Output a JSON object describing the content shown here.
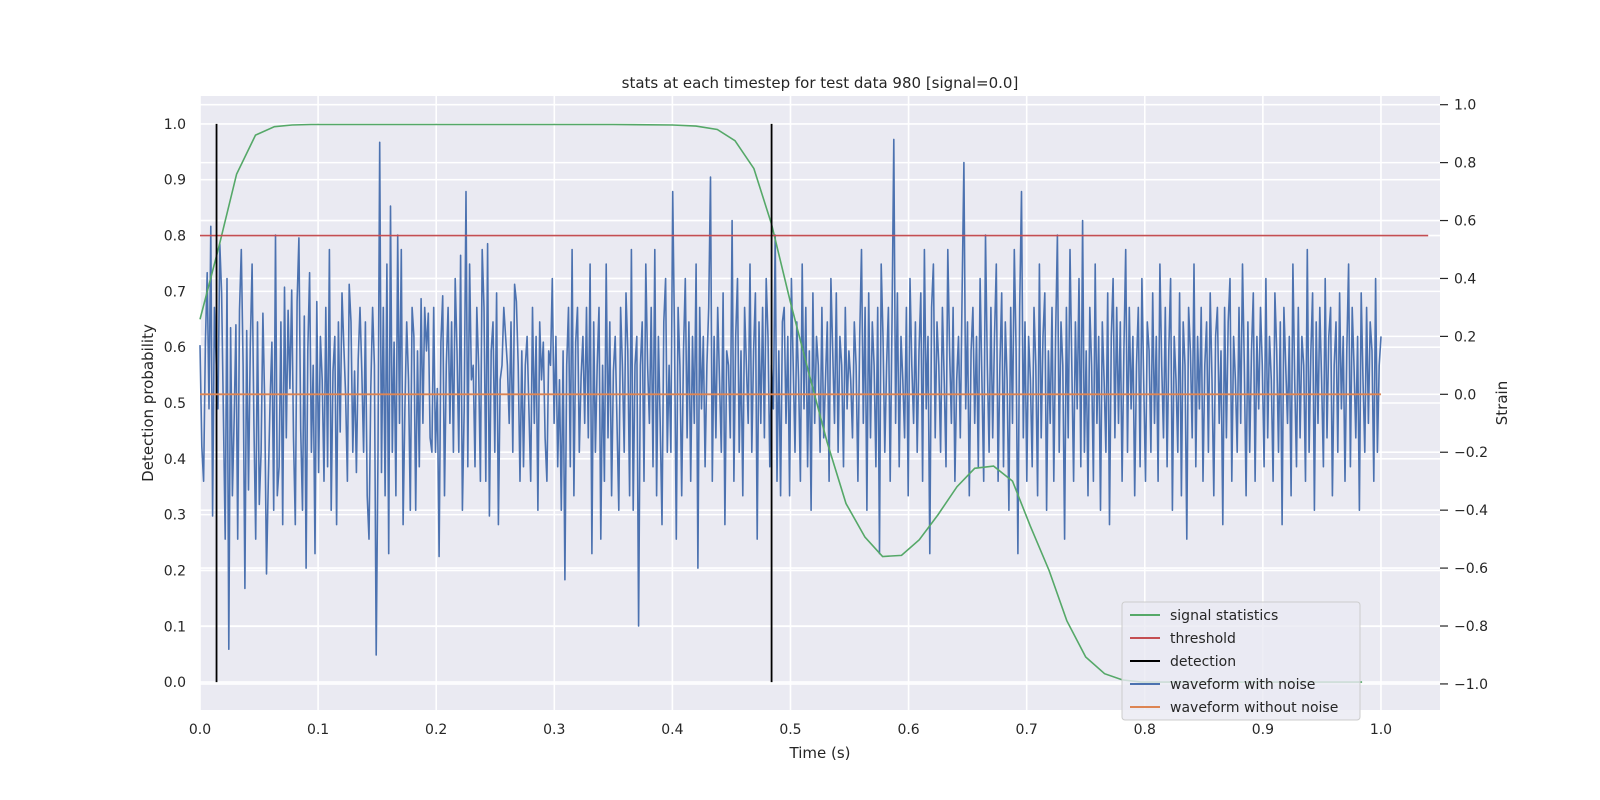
{
  "chart_data": {
    "type": "line",
    "title": "stats at each timestep for test data 980 [signal=0.0]",
    "xlabel": "Time (s)",
    "ylabel_left": "Detection probability",
    "ylabel_right": "Strain",
    "xlim": [
      0.0,
      1.05
    ],
    "ylim_left": [
      -0.05,
      1.05
    ],
    "ylim_right": [
      -1.09,
      1.03
    ],
    "x_ticks": [
      0.0,
      0.1,
      0.2,
      0.3,
      0.4,
      0.5,
      0.6,
      0.7,
      0.8,
      0.9,
      1.0
    ],
    "x_tick_labels": [
      "0.0",
      "0.1",
      "0.2",
      "0.3",
      "0.4",
      "0.5",
      "0.6",
      "0.7",
      "0.8",
      "0.9",
      "1.0"
    ],
    "y_left_ticks": [
      0.0,
      0.1,
      0.2,
      0.3,
      0.4,
      0.5,
      0.6,
      0.7,
      0.8,
      0.9,
      1.0
    ],
    "y_left_tick_labels": [
      "0.0",
      "0.1",
      "0.2",
      "0.3",
      "0.4",
      "0.5",
      "0.6",
      "0.7",
      "0.8",
      "0.9",
      "1.0"
    ],
    "y_right_ticks": [
      -1.0,
      -0.8,
      -0.6,
      -0.4,
      -0.2,
      0.0,
      0.2,
      0.4,
      0.6,
      0.8,
      1.0
    ],
    "y_right_tick_labels": [
      "−1.0",
      "−0.8",
      "−0.6",
      "−0.4",
      "−0.2",
      "0.0",
      "0.2",
      "0.4",
      "0.6",
      "0.8",
      "1.0"
    ],
    "grid": true,
    "legend_position": "lower-right",
    "legend": [
      {
        "name": "signal statistics",
        "color": "#55a868"
      },
      {
        "name": "threshold",
        "color": "#c44e52"
      },
      {
        "name": "detection",
        "color": "#000000"
      },
      {
        "name": "waveform with noise",
        "color": "#4c72b0"
      },
      {
        "name": "waveform without noise",
        "color": "#dd8452"
      }
    ],
    "signal_statistics": {
      "color": "#55a868",
      "x": [
        0.0,
        0.016,
        0.031,
        0.047,
        0.063,
        0.078,
        0.094,
        0.15,
        0.25,
        0.35,
        0.4,
        0.42,
        0.438,
        0.453,
        0.469,
        0.484,
        0.5,
        0.516,
        0.531,
        0.547,
        0.563,
        0.578,
        0.594,
        0.609,
        0.625,
        0.641,
        0.656,
        0.672,
        0.688,
        0.703,
        0.719,
        0.734,
        0.75,
        0.766,
        0.781,
        0.797,
        0.813,
        0.828,
        0.844,
        0.86,
        0.875,
        0.891,
        0.906,
        0.922,
        0.938,
        0.953,
        0.969,
        0.984
      ],
      "y": [
        0.65,
        0.78,
        0.91,
        0.98,
        0.995,
        0.998,
        0.999,
        0.999,
        0.999,
        0.999,
        0.998,
        0.996,
        0.99,
        0.97,
        0.92,
        0.82,
        0.68,
        0.55,
        0.43,
        0.32,
        0.26,
        0.225,
        0.227,
        0.255,
        0.3,
        0.35,
        0.383,
        0.387,
        0.36,
        0.28,
        0.2,
        0.11,
        0.045,
        0.015,
        0.004,
        0.0,
        0.0,
        0.0,
        0.0,
        0.0,
        0.0,
        0.0,
        0.0,
        0.0,
        0.0,
        0.0,
        0.0,
        0.0
      ]
    },
    "threshold": {
      "color": "#c44e52",
      "y": 0.8,
      "x_range": [
        0.0,
        1.04
      ]
    },
    "detections": {
      "color": "#000000",
      "x": [
        0.014,
        0.484
      ],
      "y_range": [
        0.0,
        1.0
      ]
    },
    "waveform_without_noise": {
      "color": "#dd8452",
      "x_range": [
        0.0,
        1.0
      ],
      "strain": 0.0
    },
    "waveform_with_noise": {
      "color": "#4c72b0",
      "x_start": 0.0,
      "x_end": 1.0,
      "strain": [
        0.17,
        -0.18,
        -0.3,
        0.18,
        0.42,
        -0.05,
        0.58,
        -0.42,
        0.3,
        0.11,
        -0.05,
        0.52,
        0.35,
        -0.07,
        -0.5,
        0.4,
        -0.88,
        0.23,
        -0.35,
        -0.08,
        0.24,
        -0.5,
        0.29,
        0.5,
        0.1,
        -0.67,
        0.22,
        -0.33,
        0.17,
        0.45,
        -0.1,
        -0.5,
        0.25,
        -0.38,
        -0.2,
        0.28,
        -0.03,
        -0.62,
        -0.3,
        -0.02,
        0.18,
        -0.4,
        0.55,
        -0.35,
        -0.25,
        0.25,
        -0.45,
        0.37,
        -0.15,
        0.29,
        0.02,
        0.36,
        -0.15,
        -0.45,
        0.32,
        0.54,
        -0.12,
        -0.4,
        0.27,
        -0.6,
        0.15,
        0.42,
        -0.2,
        0.1,
        -0.55,
        0.32,
        -0.27,
        0.2,
        0.05,
        -0.3,
        0.3,
        -0.25,
        0.5,
        -0.4,
        0.08,
        0.2,
        -0.45,
        0.25,
        -0.13,
        0.35,
        0.17,
        0.0,
        -0.3,
        0.38,
        0.25,
        -0.2,
        0.08,
        -0.27,
        0.12,
        0.3,
        0.08,
        -0.2,
        0.25,
        -0.35,
        -0.5,
        0.02,
        0.3,
        0.1,
        -0.9,
        -0.2,
        0.87,
        -0.27,
        0.3,
        -0.35,
        0.45,
        -0.55,
        0.65,
        -0.2,
        0.18,
        -0.35,
        0.55,
        -0.1,
        0.5,
        -0.45,
        -0.05,
        0.25,
        0.05,
        -0.4,
        0.3,
        0.2,
        -0.4,
        0.15,
        -0.25,
        0.33,
        -0.1,
        0.3,
        0.15,
        0.28,
        -0.15,
        -0.2,
        0.3,
        -0.2,
        0.02,
        -0.56,
        0.18,
        0.34,
        -0.35,
        0.1,
        0.3,
        -0.1,
        0.25,
        -0.2,
        0.4,
        0.15,
        -0.2,
        0.48,
        -0.4,
        -0.05,
        0.7,
        -0.25,
        0.45,
        0.05,
        0.1,
        -0.25,
        0.3,
        0.1,
        -0.3,
        0.5,
        0.3,
        -0.3,
        0.52,
        -0.42,
        0.15,
        0.25,
        -0.2,
        0.35,
        -0.45,
        0.05,
        0.1,
        0.3,
        0.2,
        0.1,
        -0.1,
        0.25,
        -0.2,
        0.38,
        0.32,
        0.1,
        -0.3,
        0.15,
        -0.25,
        0.1,
        0.2,
        -0.05,
        -0.3,
        0.3,
        -0.1,
        0.2,
        -0.4,
        0.25,
        0.05,
        0.18,
        -0.15,
        -0.3,
        0.15,
        0.1,
        0.4,
        -0.1,
        0.2,
        -0.25,
        0.05,
        -0.4,
        0.15,
        -0.64,
        0.1,
        0.3,
        -0.25,
        0.5,
        -0.35,
        0.18,
        0.3,
        -0.2,
        0.06,
        0.2,
        -0.1,
        0.3,
        -0.15,
        0.45,
        -0.55,
        0.25,
        -0.2,
        0.1,
        0.3,
        -0.5,
        0.1,
        -0.3,
        0.45,
        -0.15,
        0.25,
        -0.35,
        0.08,
        0.2,
        -0.1,
        -0.4,
        0.3,
        0.1,
        -0.2,
        0.35,
        0.15,
        -0.35,
        0.5,
        -0.4,
        0.1,
        0.2,
        -0.8,
        0.1,
        0.25,
        -0.3,
        0.45,
        0.1,
        -0.1,
        0.3,
        -0.25,
        0.5,
        -0.35,
        0.2,
        -0.1,
        -0.45,
        0.25,
        0.4,
        -0.2,
        0.1,
        -0.2,
        0.7,
        0.2,
        -0.5,
        0.3,
        0.1,
        -0.35,
        0.15,
        0.4,
        -0.15,
        0.25,
        -0.3,
        0.2,
        -0.1,
        0.45,
        -0.6,
        0.3,
        -0.05,
        0.2,
        -0.25,
        0.1,
        0.3,
        0.75,
        -0.3,
        0.2,
        -0.15,
        0.3,
        0.05,
        -0.2,
        0.35,
        -0.45,
        0.15,
        0.1,
        -0.15,
        0.6,
        -0.3,
        0.2,
        0.4,
        -0.2,
        0.15,
        -0.35,
        0.3,
        0.1,
        -0.1,
        0.45,
        -0.2,
        0.15,
        0.35,
        -0.5,
        0.25,
        -0.1,
        0.3,
        -0.15,
        0.4,
        0.2,
        -0.25,
        0.1,
        -0.05,
        0.55,
        -0.3,
        0.15,
        -0.35,
        0.25,
        0.3,
        -0.1,
        0.2,
        -0.35,
        0.4,
        0.1,
        -0.2,
        0.25,
        0.05,
        -0.3,
        0.45,
        -0.05,
        0.3,
        -0.25,
        0.15,
        -0.4,
        0.35,
        -0.1,
        0.2,
        0.1,
        -0.2,
        0.3,
        -0.15,
        0.05,
        0.25,
        -0.3,
        0.4,
        0.15,
        -0.1,
        0.35,
        -0.2,
        0.2,
        0.1,
        -0.25,
        0.3,
        -0.05,
        0.15,
        0.05,
        -0.15,
        0.25,
        0.1,
        -0.3,
        0.2,
        0.5,
        -0.1,
        0.3,
        -0.4,
        0.35,
        -0.15,
        0.25,
        0.1,
        -0.25,
        0.3,
        -0.55,
        0.45,
        0.2,
        -0.2,
        0.1,
        0.3,
        -0.3,
        0.25,
        0.88,
        -0.1,
        0.35,
        -0.25,
        0.2,
        0.05,
        -0.15,
        0.3,
        -0.35,
        0.4,
        0.1,
        -0.1,
        0.25,
        -0.2,
        0.15,
        0.35,
        -0.3,
        0.5,
        -0.05,
        0.2,
        -0.55,
        0.3,
        0.45,
        -0.15,
        0.25,
        0.1,
        -0.2,
        0.3,
        0.05,
        -0.25,
        0.5,
        0.15,
        -0.1,
        0.3,
        -0.3,
        0.05,
        0.2,
        -0.15,
        0.35,
        0.8,
        -0.05,
        0.25,
        -0.35,
        0.15,
        0.3,
        -0.1,
        0.2,
        -0.25,
        0.4,
        0.05,
        -0.3,
        0.55,
        0.1,
        -0.2,
        0.3,
        -0.15,
        0.2,
        0.45,
        -0.3,
        0.1,
        0.35,
        -0.25,
        0.25,
        0.05,
        -0.4,
        0.3,
        -0.1,
        0.5,
        0.15,
        -0.55,
        0.3,
        0.7,
        -0.15,
        0.25,
        -0.3,
        0.2,
        0.05,
        -0.25,
        0.3,
        0.1,
        -0.35,
        0.45,
        -0.15,
        0.2,
        0.35,
        -0.4,
        0.15,
        -0.1,
        0.3,
        -0.3,
        0.2,
        0.55,
        -0.2,
        0.25,
        0.1,
        -0.5,
        0.3,
        -0.15,
        0.5,
        0.1,
        -0.3,
        0.25,
        -0.05,
        0.4,
        -0.25,
        0.6,
        -0.2,
        0.15,
        -0.35,
        0.3,
        0.1,
        -0.3,
        0.45,
        -0.1,
        0.2,
        -0.4,
        0.25,
        0.05,
        -0.2,
        0.35,
        -0.45,
        0.2,
        0.4,
        -0.15,
        0.3,
        -0.1,
        0.25,
        -0.3,
        0.15,
        0.5,
        -0.2,
        0.3,
        -0.05,
        0.2,
        -0.35,
        0.1,
        0.3,
        -0.25,
        0.4,
        0.05,
        -0.3,
        0.25,
        0.15,
        -0.2,
        0.35,
        -0.1,
        0.2,
        -0.3,
        0.45,
        0.1,
        -0.15,
        0.3,
        -0.25,
        0.15,
        0.4,
        -0.4,
        0.2,
        0.05,
        -0.2,
        0.35,
        -0.35,
        0.25,
        0.1,
        -0.5,
        0.3,
        0.15,
        -0.15,
        0.45,
        -0.25,
        0.2,
        -0.05,
        0.3,
        -0.3,
        0.1,
        0.25,
        -0.2,
        0.35,
        0.05,
        -0.35,
        0.2,
        0.3,
        -0.1,
        0.15,
        -0.45,
        0.3,
        -0.15,
        0.25,
        0.4,
        -0.3,
        0.2,
        0.05,
        -0.2,
        0.3,
        -0.1,
        0.45,
        0.1,
        -0.35,
        0.25,
        -0.2,
        0.15,
        0.35,
        -0.3,
        0.2,
        -0.05,
        0.3,
        0.1,
        -0.25,
        0.4,
        -0.15,
        0.2,
        0.05,
        -0.3,
        0.35,
        0.15,
        -0.2,
        0.25,
        -0.45,
        0.3,
        0.1,
        -0.1,
        0.2,
        -0.35,
        0.45,
        0.05,
        -0.25,
        0.3,
        -0.15,
        0.2,
        0.1,
        -0.3,
        0.5,
        -0.2,
        0.15,
        0.35,
        -0.4,
        0.25,
        -0.1,
        0.3,
        0.05,
        -0.25,
        0.4,
        -0.15,
        0.2,
        0.3,
        -0.35,
        0.1,
        0.25,
        -0.2,
        0.35,
        -0.05,
        0.2,
        -0.3,
        0.15,
        0.45,
        -0.25,
        0.3,
        0.1,
        -0.15,
        0.2,
        -0.4,
        0.35,
        0.05,
        -0.2,
        0.3,
        -0.1,
        0.25,
        0.15,
        -0.3,
        0.4,
        -0.2,
        0.1,
        0.2
      ]
    }
  }
}
